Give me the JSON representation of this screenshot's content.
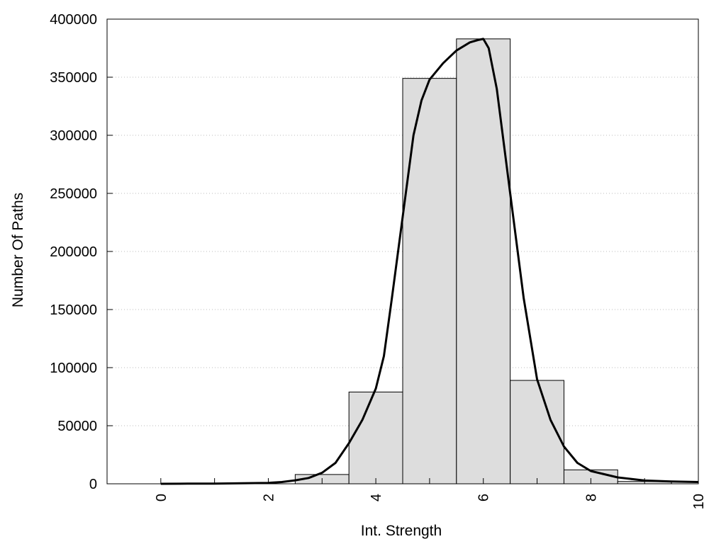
{
  "chart_data": {
    "type": "bar",
    "xlabel": "Int. Strength",
    "ylabel": "Number Of Paths",
    "xlim": [
      -1,
      10
    ],
    "ylim": [
      0,
      400000
    ],
    "x_ticks": [
      "0",
      "2",
      "4",
      "6",
      "8",
      "10"
    ],
    "y_ticks": [
      "0",
      "50000",
      "100000",
      "150000",
      "200000",
      "250000",
      "300000",
      "350000",
      "400000"
    ],
    "grid": "horizontal-dotted",
    "bars": {
      "x": [
        0,
        1,
        2,
        3,
        4,
        5,
        6,
        7,
        8,
        9,
        10
      ],
      "values": [
        0,
        0,
        0,
        8000,
        79000,
        349000,
        383000,
        89000,
        12000,
        2000,
        0
      ],
      "color": "#dddddd"
    },
    "curve": {
      "x": [
        0,
        0.5,
        1,
        1.5,
        2,
        2.25,
        2.5,
        2.75,
        3,
        3.25,
        3.5,
        3.75,
        4,
        4.15,
        4.3,
        4.5,
        4.7,
        4.85,
        5,
        5.25,
        5.5,
        5.75,
        5.9,
        6,
        6.1,
        6.25,
        6.5,
        6.75,
        7,
        7.25,
        7.5,
        7.75,
        8,
        8.5,
        9,
        9.5,
        10
      ],
      "y": [
        0,
        100,
        200,
        400,
        800,
        1500,
        3000,
        5000,
        9500,
        18000,
        35000,
        55000,
        82000,
        110000,
        160000,
        230000,
        300000,
        330000,
        348000,
        362000,
        373000,
        380000,
        382000,
        383000,
        375000,
        340000,
        250000,
        160000,
        90000,
        55000,
        32000,
        18000,
        11000,
        5500,
        2800,
        2000,
        1500
      ],
      "color": "#000000"
    }
  }
}
